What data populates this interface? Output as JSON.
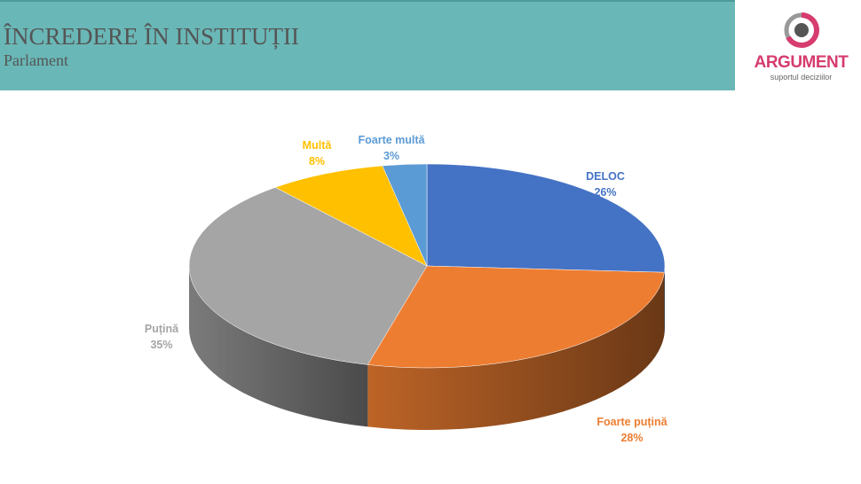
{
  "header": {
    "title": "ÎNCREDERE ÎN INSTITUȚII",
    "subtitle": "Parlament"
  },
  "logo": {
    "name": "ARGUMENT",
    "tagline": "suportul deciziilor"
  },
  "chart_data": {
    "type": "pie",
    "style": "3d",
    "categories": [
      "DELOC",
      "Foarte puțină",
      "Puțină",
      "Multă",
      "Foarte multă"
    ],
    "values": [
      26,
      28,
      35,
      8,
      3
    ],
    "labels": [
      "26%",
      "28%",
      "35%",
      "8%",
      "3%"
    ],
    "colors": [
      "#4472c4",
      "#ed7d31",
      "#a5a5a5",
      "#ffc000",
      "#5b9bd5"
    ],
    "label_colors": [
      "#4472c4",
      "#ed7d31",
      "#a5a5a5",
      "#ffc000",
      "#5b9bd5"
    ]
  }
}
